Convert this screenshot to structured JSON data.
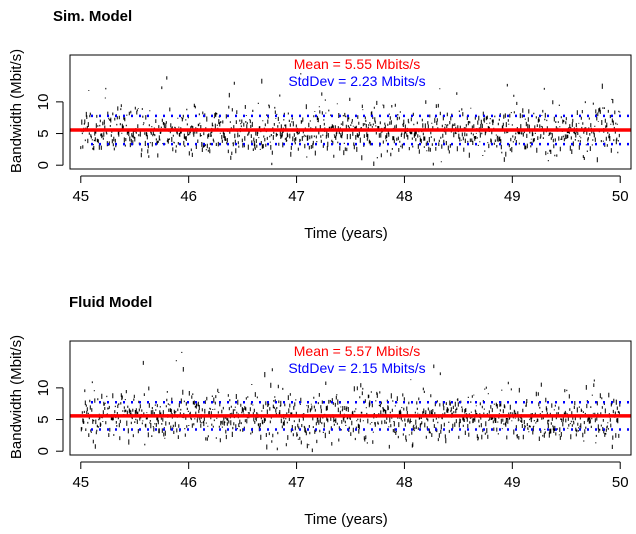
{
  "chart_data": [
    {
      "type": "scatter",
      "title": "Sim. Model",
      "xlabel": "Time (years)",
      "ylabel": "Bandwidth (Mbit/s)",
      "xlim": [
        44.9,
        50.1
      ],
      "ylim": [
        -0.6,
        17.4
      ],
      "xticks": [
        "45",
        "46",
        "47",
        "48",
        "49",
        "50"
      ],
      "yticks": [
        "0",
        "5",
        "10"
      ],
      "grid": false,
      "legend": "none",
      "annotations": {
        "mean": "Mean = 5.55 Mbits/s",
        "stddev": "StdDev =  2.23 Mbits/s"
      },
      "mean": 5.55,
      "stddev": 2.23,
      "band": [
        3.32,
        7.78
      ],
      "series_color": "#000000",
      "mean_color": "#ff0000",
      "band_color": "#0000ff"
    },
    {
      "type": "scatter",
      "title": "Fluid Model",
      "xlabel": "Time (years)",
      "ylabel": "Bandwidth (Mbit/s)",
      "xlim": [
        44.9,
        50.1
      ],
      "ylim": [
        -0.6,
        17.4
      ],
      "xticks": [
        "45",
        "46",
        "47",
        "48",
        "49",
        "50"
      ],
      "yticks": [
        "0",
        "5",
        "10"
      ],
      "grid": false,
      "legend": "none",
      "annotations": {
        "mean": "Mean = 5.57 Mbits/s",
        "stddev": "StdDev =  2.15 Mbits/s"
      },
      "mean": 5.57,
      "stddev": 2.15,
      "band": [
        3.42,
        7.72
      ],
      "series_color": "#000000",
      "mean_color": "#ff0000",
      "band_color": "#0000ff"
    }
  ]
}
